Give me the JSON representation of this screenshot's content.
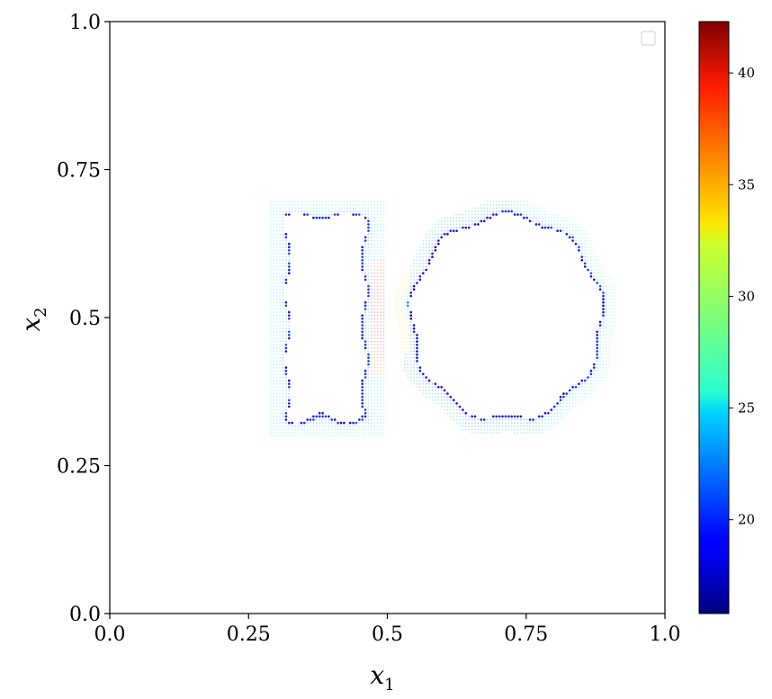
{
  "chart_data": {
    "type": "scatter",
    "title": "",
    "xlabel": "x",
    "xlabel_subscript": "1",
    "ylabel": "x",
    "ylabel_subscript": "2",
    "xlim": [
      0.0,
      1.0
    ],
    "ylim": [
      0.0,
      1.0
    ],
    "x_ticks": [
      "0.0",
      "0.25",
      "0.5",
      "0.75",
      "1.0"
    ],
    "y_ticks": [
      "0.0",
      "0.25",
      "0.5",
      "0.75",
      "1.0"
    ],
    "x_tick_values": [
      0.0,
      0.25,
      0.5,
      0.75,
      1.0
    ],
    "y_tick_values": [
      0.0,
      0.25,
      0.5,
      0.75,
      1.0
    ],
    "grid": false,
    "legend": {
      "placement": "top-right",
      "entries": []
    },
    "colorbar": {
      "colormap": "jet",
      "range": [
        15.8,
        42.3
      ],
      "ticks": [
        "20",
        "25",
        "30",
        "35",
        "40"
      ],
      "tick_values": [
        20,
        25,
        30,
        35,
        40
      ]
    },
    "shapes": [
      {
        "name": "rectangle",
        "x_range": [
          0.29,
          0.495
        ],
        "y_range": [
          0.3,
          0.7
        ],
        "inner_value_range": [
          16,
          20
        ],
        "band_value": 24,
        "hot_edge_value": 40
      },
      {
        "name": "circle",
        "center": [
          0.715,
          0.5
        ],
        "outer_radius": 0.2,
        "inner_radius": 0.17,
        "inner_value_range": [
          16,
          19
        ],
        "band_value": 25,
        "hot_edge_value": 33
      }
    ]
  }
}
